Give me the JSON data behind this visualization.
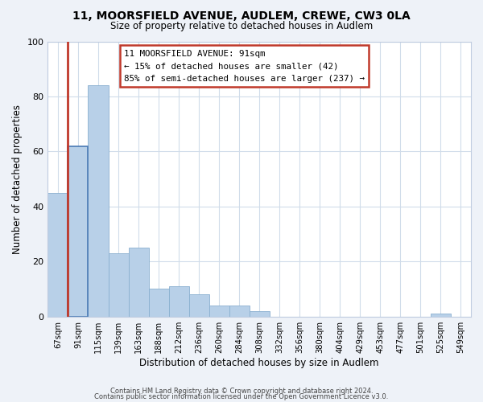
{
  "title1": "11, MOORSFIELD AVENUE, AUDLEM, CREWE, CW3 0LA",
  "title2": "Size of property relative to detached houses in Audlem",
  "xlabel": "Distribution of detached houses by size in Audlem",
  "ylabel": "Number of detached properties",
  "bar_labels": [
    "67sqm",
    "91sqm",
    "115sqm",
    "139sqm",
    "163sqm",
    "188sqm",
    "212sqm",
    "236sqm",
    "260sqm",
    "284sqm",
    "308sqm",
    "332sqm",
    "356sqm",
    "380sqm",
    "404sqm",
    "429sqm",
    "453sqm",
    "477sqm",
    "501sqm",
    "525sqm",
    "549sqm"
  ],
  "bar_values": [
    45,
    62,
    84,
    23,
    25,
    10,
    11,
    8,
    4,
    4,
    2,
    0,
    0,
    0,
    0,
    0,
    0,
    0,
    0,
    1,
    0
  ],
  "bar_color": "#b8d0e8",
  "bar_edge_color": "#8ab0d0",
  "highlight_color": "#c0392b",
  "highlight_index": 1,
  "annotation_line1": "11 MOORSFIELD AVENUE: 91sqm",
  "annotation_line2": "← 15% of detached houses are smaller (42)",
  "annotation_line3": "85% of semi-detached houses are larger (237) →",
  "footer1": "Contains HM Land Registry data © Crown copyright and database right 2024.",
  "footer2": "Contains public sector information licensed under the Open Government Licence v3.0.",
  "ylim": [
    0,
    100
  ],
  "bg_color": "#eef2f8",
  "plot_bg": "#ffffff"
}
